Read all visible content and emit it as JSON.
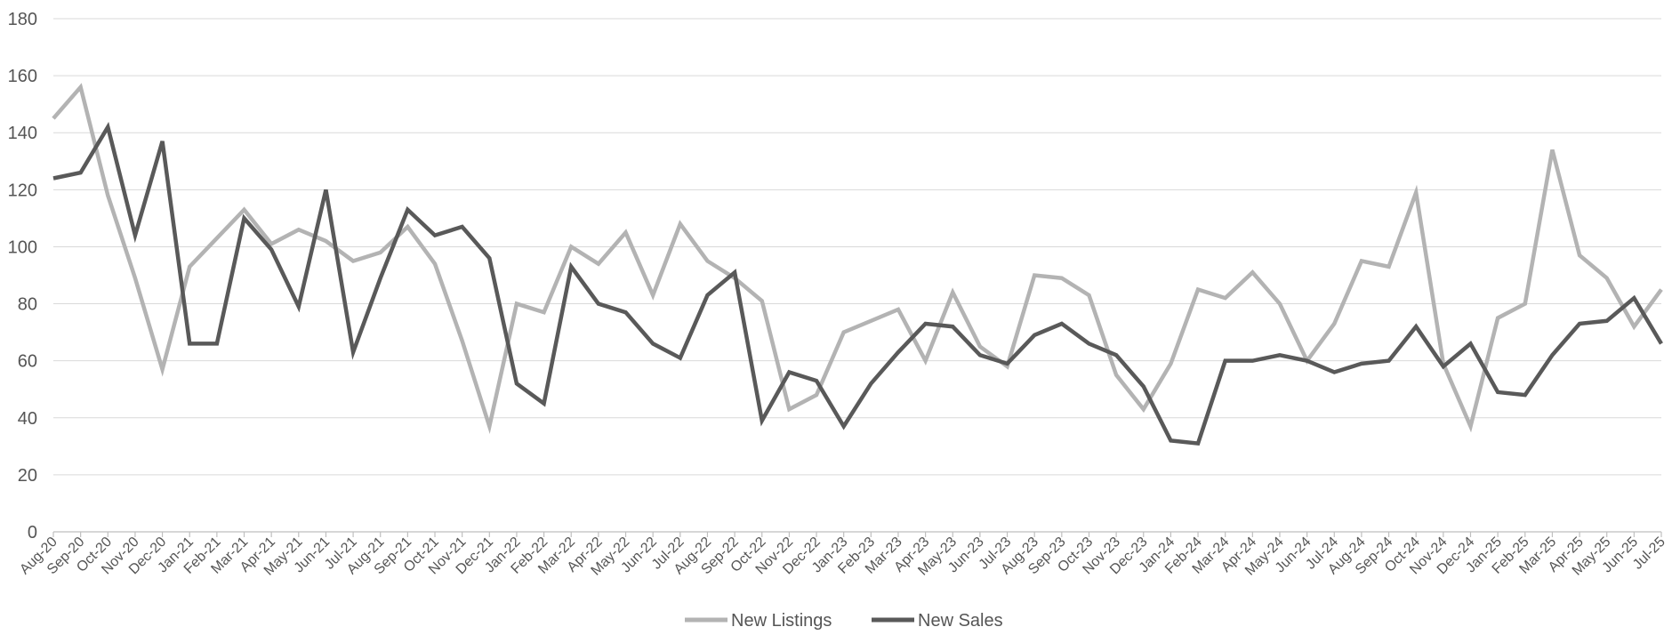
{
  "chart_data": {
    "type": "line",
    "title": "",
    "xlabel": "",
    "ylabel": "",
    "ylim": [
      0,
      180
    ],
    "yticks": [
      0,
      20,
      40,
      60,
      80,
      100,
      120,
      140,
      160,
      180
    ],
    "grid": true,
    "legend_position": "bottom-center",
    "categories": [
      "Aug-20",
      "Sep-20",
      "Oct-20",
      "Nov-20",
      "Dec-20",
      "Jan-21",
      "Feb-21",
      "Mar-21",
      "Apr-21",
      "May-21",
      "Jun-21",
      "Jul-21",
      "Aug-21",
      "Sep-21",
      "Oct-21",
      "Nov-21",
      "Dec-21",
      "Jan-22",
      "Feb-22",
      "Mar-22",
      "Apr-22",
      "May-22",
      "Jun-22",
      "Jul-22",
      "Aug-22",
      "Sep-22",
      "Oct-22",
      "Nov-22",
      "Dec-22",
      "Jan-23",
      "Feb-23",
      "Mar-23",
      "Apr-23",
      "May-23",
      "Jun-23",
      "Jul-23",
      "Aug-23",
      "Sep-23",
      "Oct-23",
      "Nov-23",
      "Dec-23",
      "Jan-24",
      "Feb-24",
      "Mar-24",
      "Apr-24",
      "May-24",
      "Jun-24",
      "Jul-24",
      "Aug-24",
      "Sep-24",
      "Oct-24",
      "Nov-24",
      "Dec-24",
      "Jan-25",
      "Feb-25",
      "Mar-25",
      "Apr-25",
      "May-25",
      "Jun-25",
      "Jul-25"
    ],
    "series": [
      {
        "name": "New Listings",
        "color": "#b3b3b3",
        "values": [
          145,
          156,
          118,
          89,
          57,
          93,
          103,
          113,
          101,
          106,
          102,
          95,
          98,
          107,
          94,
          67,
          37,
          80,
          77,
          100,
          94,
          105,
          83,
          108,
          95,
          89,
          81,
          43,
          48,
          70,
          74,
          78,
          60,
          84,
          65,
          58,
          90,
          89,
          83,
          55,
          43,
          59,
          85,
          82,
          91,
          80,
          60,
          73,
          95,
          93,
          119,
          59,
          37,
          75,
          80,
          134,
          97,
          89,
          72,
          85
        ]
      },
      {
        "name": "New Sales",
        "color": "#595959",
        "values": [
          124,
          126,
          142,
          104,
          137,
          66,
          66,
          110,
          99,
          79,
          120,
          63,
          89,
          113,
          104,
          107,
          96,
          52,
          45,
          93,
          80,
          77,
          66,
          61,
          83,
          91,
          39,
          56,
          53,
          37,
          52,
          63,
          73,
          72,
          62,
          59,
          69,
          73,
          66,
          62,
          51,
          32,
          31,
          60,
          60,
          62,
          60,
          56,
          59,
          60,
          72,
          58,
          66,
          49,
          48,
          62,
          73,
          74,
          82,
          66
        ]
      }
    ]
  }
}
